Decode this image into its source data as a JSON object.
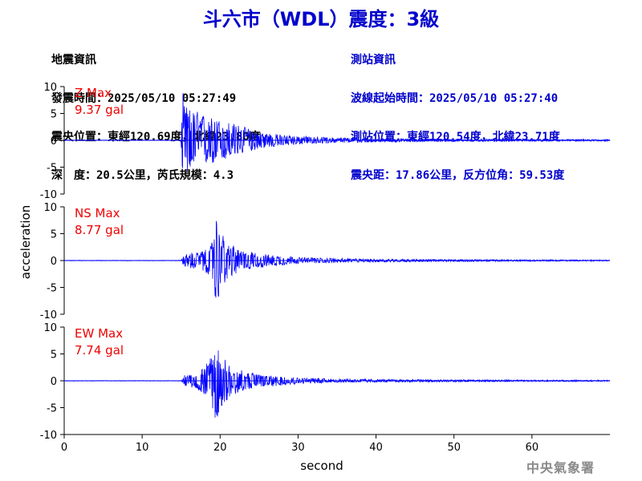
{
  "header": {
    "title": "斗六市（WDL）震度：3級"
  },
  "earthquake_info": {
    "heading": "地震資訊",
    "origin_time": "發震時間：2025/05/10 05:27:49",
    "epicenter": "震央位置：東經120.69度，北緯23.80度",
    "depth_magnitude": "深　度：20.5公里，芮氏規模：4.3"
  },
  "station_info": {
    "heading": "測站資訊",
    "wave_start": "波線起始時間：2025/05/10 05:27:40",
    "location": "測站位置：東經120.54度，北緯23.71度",
    "distance": "震央距：17.86公里，反方位角：59.53度"
  },
  "footer": {
    "credit": "中央氣象署"
  },
  "colors": {
    "title": "#0000cc",
    "trace": "#0000ff",
    "max_label": "#ee0000",
    "axis": "#000000"
  },
  "chart_data": {
    "type": "line",
    "xlabel": "second",
    "ylabel": "acceleration",
    "xlim": [
      0,
      70
    ],
    "xticks": [
      0,
      10,
      20,
      30,
      40,
      50,
      60
    ],
    "ylim": [
      -10,
      10
    ],
    "yticks": [
      -10,
      -5,
      0,
      5,
      10
    ],
    "grid": false,
    "series": [
      {
        "name": "Z",
        "max_title": "Z Max",
        "max_value": "9.37 gal",
        "envelope": {
          "x": [
            0,
            15.0,
            15.2,
            15.5,
            16,
            17,
            18,
            19,
            20,
            21,
            22,
            23,
            24,
            25,
            27,
            30,
            35,
            40,
            45,
            50,
            55,
            60,
            70
          ],
          "max": [
            0.05,
            0.05,
            9.37,
            6.5,
            6.0,
            5.5,
            4.8,
            4.2,
            3.8,
            3.5,
            3.0,
            2.6,
            2.0,
            1.6,
            1.2,
            0.8,
            0.5,
            0.35,
            0.3,
            0.25,
            0.2,
            0.2,
            0.15
          ],
          "min": [
            -0.05,
            -0.05,
            -9.2,
            -6.5,
            -6.0,
            -5.0,
            -4.5,
            -4.5,
            -4.2,
            -3.5,
            -3.0,
            -2.4,
            -2.0,
            -1.6,
            -1.2,
            -0.8,
            -0.5,
            -0.35,
            -0.3,
            -0.25,
            -0.2,
            -0.2,
            -0.15
          ]
        }
      },
      {
        "name": "NS",
        "max_title": "NS Max",
        "max_value": "8.77 gal",
        "envelope": {
          "x": [
            0,
            15.0,
            15.3,
            16,
            17,
            18,
            19,
            19.5,
            20,
            21,
            22,
            23,
            25,
            28,
            30,
            35,
            40,
            45,
            50,
            60,
            70
          ],
          "max": [
            0.05,
            0.05,
            1.0,
            1.5,
            1.5,
            1.8,
            3.5,
            7.4,
            5.5,
            3.5,
            2.5,
            1.8,
            1.3,
            0.9,
            0.6,
            0.4,
            0.3,
            0.25,
            0.2,
            0.15,
            0.12
          ],
          "min": [
            -0.05,
            -0.05,
            -1.0,
            -1.5,
            -1.5,
            -2.0,
            -4.5,
            -8.77,
            -5.5,
            -3.5,
            -2.5,
            -1.8,
            -1.3,
            -0.9,
            -0.6,
            -0.4,
            -0.3,
            -0.25,
            -0.2,
            -0.15,
            -0.12
          ]
        }
      },
      {
        "name": "EW",
        "max_title": "EW Max",
        "max_value": "7.74 gal",
        "envelope": {
          "x": [
            0,
            15.0,
            15.3,
            16,
            17,
            18,
            19,
            19.5,
            20,
            21,
            22,
            23,
            25,
            28,
            30,
            35,
            40,
            45,
            50,
            60,
            70
          ],
          "max": [
            0.05,
            0.05,
            1.0,
            1.2,
            1.5,
            2.5,
            5.0,
            7.0,
            5.0,
            3.5,
            2.5,
            1.8,
            1.2,
            0.9,
            0.6,
            0.35,
            0.3,
            0.25,
            0.2,
            0.15,
            0.12
          ],
          "min": [
            -0.05,
            -0.05,
            -1.0,
            -1.2,
            -1.5,
            -2.5,
            -5.0,
            -7.74,
            -5.0,
            -3.5,
            -2.5,
            -1.8,
            -1.2,
            -0.9,
            -0.6,
            -0.35,
            -0.3,
            -0.25,
            -0.2,
            -0.15,
            -0.12
          ]
        }
      }
    ]
  }
}
